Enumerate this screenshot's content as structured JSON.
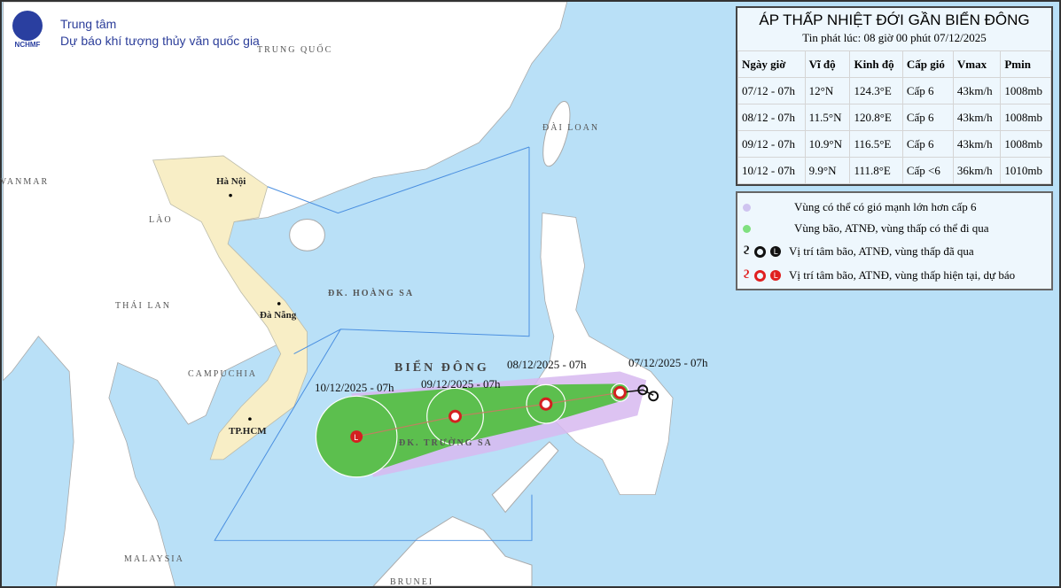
{
  "header": {
    "org_line1": "Trung tâm",
    "org_line2": "Dự báo khí tượng thủy văn quốc gia",
    "logo_text": "NCHMF"
  },
  "panel": {
    "title": "ÁP THẤP NHIỆT ĐỚI GẦN BIỂN ĐÔNG",
    "issued": "Tin phát lúc: 08 giờ 00 phút 07/12/2025",
    "columns": [
      "Ngày giờ",
      "Vĩ độ",
      "Kinh độ",
      "Cấp gió",
      "Vmax",
      "Pmin"
    ],
    "rows": [
      [
        "07/12 - 07h",
        "12°N",
        "124.3°E",
        "Cấp 6",
        "43km/h",
        "1008mb"
      ],
      [
        "08/12 - 07h",
        "11.5°N",
        "120.8°E",
        "Cấp 6",
        "43km/h",
        "1008mb"
      ],
      [
        "09/12 - 07h",
        "10.9°N",
        "116.5°E",
        "Cấp 6",
        "43km/h",
        "1008mb"
      ],
      [
        "10/12 - 07h",
        "9.9°N",
        "111.8°E",
        "Cấp <6",
        "36km/h",
        "1010mb"
      ]
    ]
  },
  "legend": [
    {
      "text": "Vùng có thể có gió mạnh lớn hơn cấp 6",
      "color": "#cfc4f0"
    },
    {
      "text": "Vùng bão, ATNĐ, vùng thấp có thể đi qua",
      "color": "#7fe07f"
    },
    {
      "text": "Vị trí tâm bão, ATNĐ, vùng thấp đã qua",
      "color": "#111111"
    },
    {
      "text": "Vị trí tâm bão, ATNĐ, vùng thấp hiện tại, dự báo",
      "color": "#e02020"
    }
  ],
  "map": {
    "country_labels": [
      "TRUNG QUỐC",
      "VANMAR",
      "LÀO",
      "THÁI LAN",
      "CAMPUCHIA",
      "MALAYSIA",
      "BRUNEI",
      "ĐÀI LOAN"
    ],
    "cities": [
      "Hà Nội",
      "Đà Nẵng",
      "TP.HCM"
    ],
    "sea_labels": [
      "BIỂN ĐÔNG",
      "ĐK. HOÀNG SA",
      "ĐK. TRƯỜNG SA"
    ],
    "track_labels": [
      "07/12/2025 - 07h",
      "08/12/2025 - 07h",
      "09/12/2025 - 07h",
      "10/12/2025 - 07h"
    ],
    "colors": {
      "sea": "#b9e0f7",
      "vietnam": "#f8eec6",
      "land": "#ffffff",
      "cone": "#5cbf4e",
      "strong_wind": "#d7b8f0",
      "center": "#d42020"
    }
  }
}
